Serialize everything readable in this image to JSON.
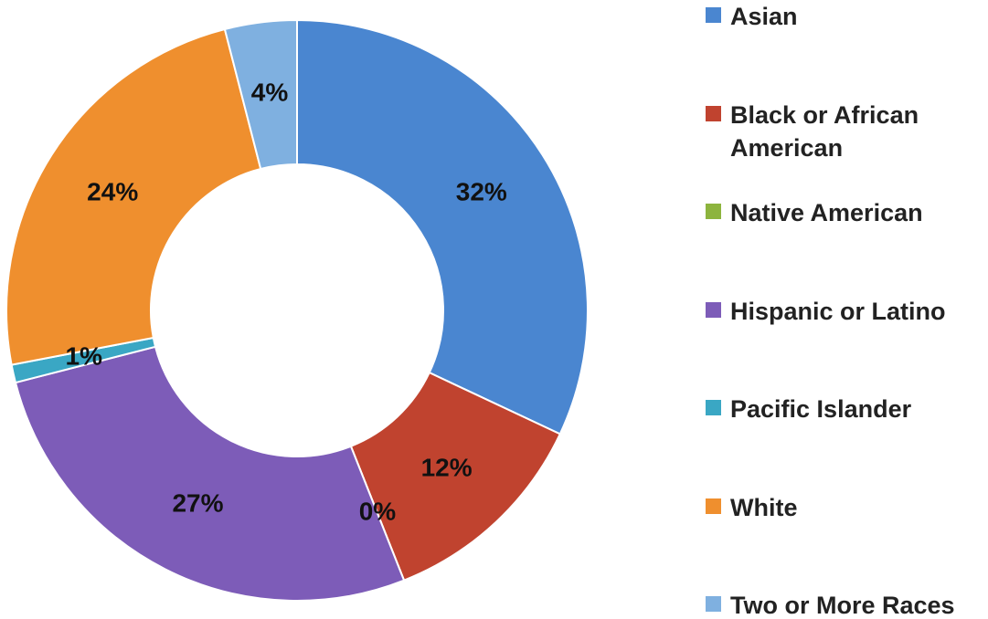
{
  "chart_data": {
    "type": "donut",
    "categories": [
      "Asian",
      "Black or African American",
      "Native American",
      "Hispanic or Latino",
      "Pacific Islander",
      "White",
      "Two or More Races"
    ],
    "values": [
      32,
      12,
      0,
      27,
      1,
      24,
      4
    ],
    "value_labels": [
      "32%",
      "12%",
      "0%",
      "27%",
      "1%",
      "24%",
      "4%"
    ],
    "colors": [
      "#4a86d0",
      "#c0432f",
      "#8db43e",
      "#7d5cb8",
      "#3aa7c4",
      "#ef8f2e",
      "#7fb0e0"
    ]
  }
}
